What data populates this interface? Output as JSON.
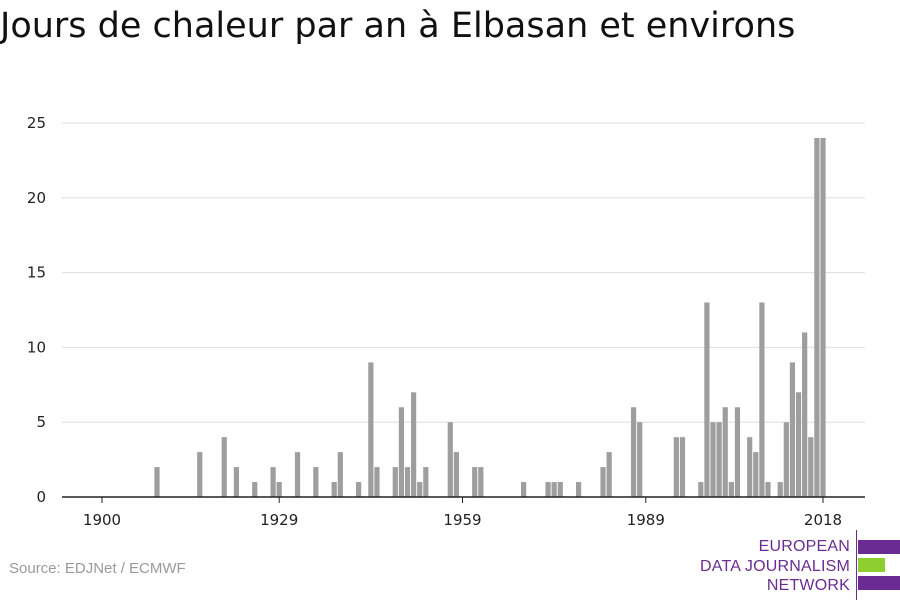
{
  "title": "Jours de chaleur par an à Elbasan et environs",
  "source": "Source: EDJNet / ECMWF",
  "logo": {
    "lines": [
      "EUROPEAN",
      "DATA JOURNALISM",
      "NETWORK"
    ],
    "colors": {
      "purple": "#6b2c91",
      "green": "#8dcf2e"
    }
  },
  "chart_data": {
    "type": "bar",
    "xlim": [
      1900,
      2018
    ],
    "ylim": [
      0,
      25
    ],
    "x_ticks": [
      1900,
      1929,
      1959,
      1989,
      2018
    ],
    "y_ticks": [
      0,
      5,
      10,
      15,
      20,
      25
    ],
    "grid": true,
    "bar_color": "#9e9e9e",
    "x": [
      1909,
      1916,
      1920,
      1922,
      1925,
      1928,
      1929,
      1932,
      1935,
      1938,
      1939,
      1942,
      1944,
      1945,
      1948,
      1949,
      1950,
      1951,
      1952,
      1953,
      1957,
      1958,
      1961,
      1962,
      1969,
      1973,
      1974,
      1975,
      1978,
      1982,
      1983,
      1987,
      1988,
      1994,
      1995,
      1998,
      1999,
      2000,
      2001,
      2002,
      2003,
      2004,
      2006,
      2007,
      2008,
      2009,
      2011,
      2012,
      2013,
      2014,
      2015,
      2016,
      2017,
      2018
    ],
    "values": [
      2,
      3,
      4,
      2,
      1,
      2,
      1,
      3,
      2,
      1,
      3,
      1,
      9,
      2,
      2,
      6,
      2,
      7,
      1,
      2,
      5,
      3,
      2,
      2,
      1,
      1,
      1,
      1,
      1,
      2,
      3,
      6,
      5,
      4,
      4,
      1,
      13,
      5,
      5,
      6,
      1,
      6,
      4,
      3,
      13,
      1,
      1,
      5,
      9,
      7,
      11,
      4,
      24,
      24
    ]
  }
}
